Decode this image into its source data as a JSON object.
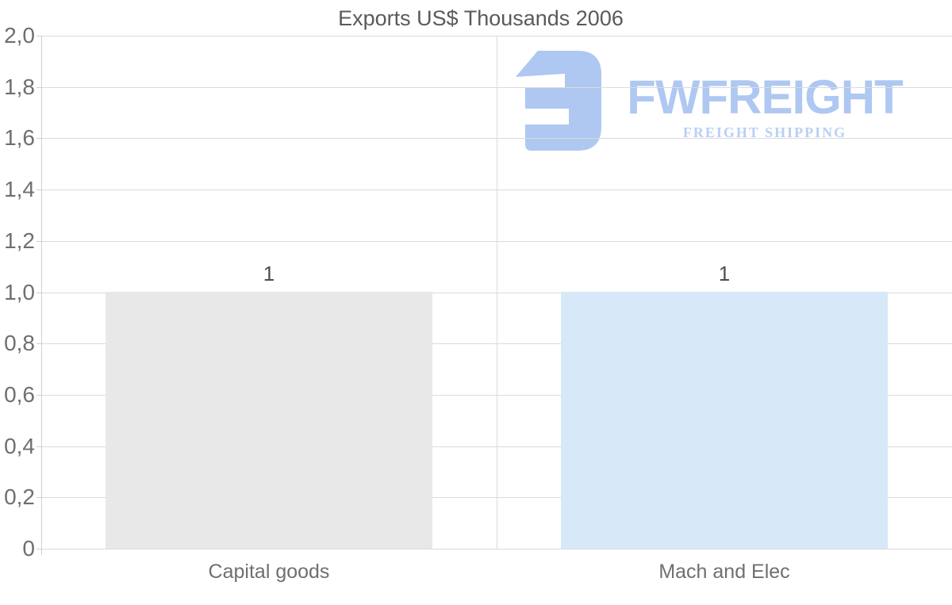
{
  "watermark": {
    "brand": "FWFREIGHT",
    "tagline": "FREIGHT SHIPPING",
    "logo_color": "#aec8f1",
    "tagline_color": "#b9cff3"
  },
  "chart_data": {
    "type": "bar",
    "title": "Exports US$ Thousands 2006",
    "categories": [
      "Capital goods",
      "Mach and Elec"
    ],
    "values": [
      1,
      1
    ],
    "value_labels": [
      "1",
      "1"
    ],
    "bar_colors": [
      "#e8e8e8",
      "#d7e8f9"
    ],
    "xlabel": "",
    "ylabel": "",
    "ylim": [
      0,
      2
    ],
    "ytick_values": [
      2.0,
      1.8,
      1.6,
      1.4,
      1.2,
      1.0,
      0.8,
      0.6,
      0.4,
      0.2,
      0
    ],
    "ytick_labels": [
      "2,0",
      "1,8",
      "1,6",
      "1,4",
      "1,2",
      "1,0",
      "0,8",
      "0,6",
      "0,4",
      "0,2",
      "0"
    ],
    "decimal_separator": ",",
    "grid": true,
    "legend": false
  },
  "colors": {
    "grid": "#dbdbdb",
    "axis": "#d0d0d0",
    "title_text": "#5a5a5a",
    "tick_text": "#6f6f6f",
    "value_text": "#4d4d4d",
    "logo": "#aec8f1",
    "tagline": "#b9cff3"
  }
}
